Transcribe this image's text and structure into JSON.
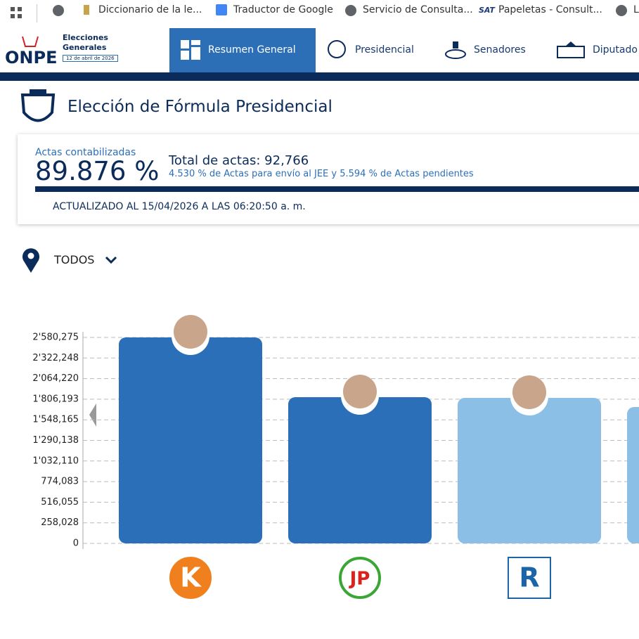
{
  "bookmarks": [
    "Diccionario de la le...",
    "Traductor de Google",
    "Servicio de Consulta...",
    "SAT",
    "Papeletas - Consult...",
    "L"
  ],
  "header": {
    "logo": "ONPE",
    "event_line1": "Elecciones",
    "event_line2": "Generales",
    "date": "12 de abril de 2026",
    "tabs": [
      "Resumen General",
      "Presidencial",
      "Senadores",
      "Diputado"
    ]
  },
  "page_title": "Elección de Fórmula Presidencial",
  "summary": {
    "label": "Actas contabilizadas",
    "percent": "89.876 %",
    "total": "Total de actas: 92,766",
    "detail": "4.530 % de Actas para envío al JEE y 5.594 % de Actas pendientes",
    "updated": "ACTUALIZADO AL 15/04/2026 A LAS 06:20:50 a. m."
  },
  "filter": "TODOS",
  "chart_data": {
    "type": "bar",
    "categories": [
      "K",
      "JP",
      "R",
      null
    ],
    "values": [
      2580275,
      1831700,
      1823000,
      1708400
    ],
    "colors": [
      "#2c6fb9",
      "#2c6fb9",
      "#8cbfe5",
      "#8cbfe5"
    ],
    "ylim": [
      0,
      2580275
    ],
    "yticks": [
      0,
      {
        "value": 258028,
        "label": "258,028"
      },
      {
        "value": 516055,
        "label": "516,055"
      },
      {
        "value": 774083,
        "label": "774,083"
      },
      {
        "value": 1032110,
        "label": "1'032,110"
      },
      {
        "value": 1290138,
        "label": "1'290,138"
      },
      {
        "value": 1548165,
        "label": "1'548,165"
      },
      {
        "value": 1806193,
        "label": "1'806,193"
      },
      {
        "value": 2064220,
        "label": "2'064,220"
      },
      {
        "value": 2322248,
        "label": "2'322,248"
      },
      {
        "value": 2580275,
        "label": "2'580,275"
      }
    ],
    "grid": true
  }
}
